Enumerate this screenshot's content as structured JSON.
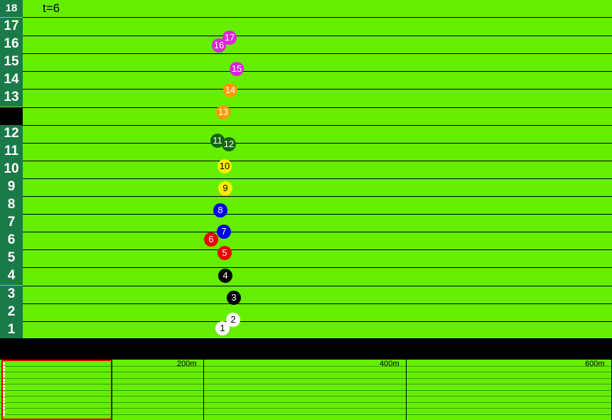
{
  "timer": "t=6",
  "top_lane_label": "18",
  "lanes": [
    {
      "label": "17"
    },
    {
      "label": "16"
    },
    {
      "label": "15"
    },
    {
      "label": "14"
    },
    {
      "label": "13"
    },
    {
      "label": ""
    },
    {
      "label": "12"
    },
    {
      "label": "11"
    },
    {
      "label": "10"
    },
    {
      "label": "9"
    },
    {
      "label": "8"
    },
    {
      "label": "7"
    },
    {
      "label": "6"
    },
    {
      "label": "5"
    },
    {
      "label": "4"
    },
    {
      "label": "3"
    },
    {
      "label": "2"
    },
    {
      "label": "1"
    }
  ],
  "horses": [
    {
      "num": "17",
      "color": "#dd22dd"
    },
    {
      "num": "16",
      "color": "#dd22dd"
    },
    {
      "num": "15",
      "color": "#dd22dd"
    },
    {
      "num": "14",
      "color": "#ff9900"
    },
    {
      "num": "13",
      "color": "#ff9900"
    },
    {
      "num": "11",
      "color": "#116611"
    },
    {
      "num": "12",
      "color": "#116611"
    },
    {
      "num": "10",
      "color": "#ffee00"
    },
    {
      "num": "9",
      "color": "#ffee00"
    },
    {
      "num": "8",
      "color": "#0000ee"
    },
    {
      "num": "7",
      "color": "#0000ee"
    },
    {
      "num": "6",
      "color": "#ee0000"
    },
    {
      "num": "5",
      "color": "#ee0000"
    },
    {
      "num": "4",
      "color": "#000000"
    },
    {
      "num": "3",
      "color": "#000000"
    },
    {
      "num": "2",
      "color": "#ffffff"
    },
    {
      "num": "1",
      "color": "#ffffff"
    }
  ],
  "minimap": {
    "markers": [
      "200m",
      "400m",
      "600m"
    ]
  }
}
